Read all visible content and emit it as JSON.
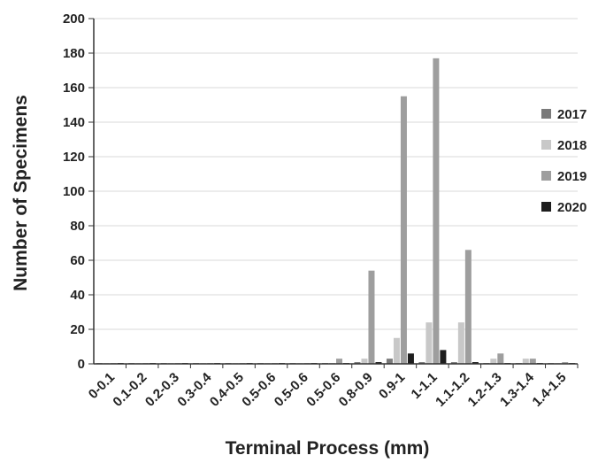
{
  "chart_data": {
    "type": "bar",
    "title": "",
    "xlabel": "Terminal Process (mm)",
    "ylabel": "Number of Specimens",
    "ylim": [
      0,
      200
    ],
    "ystep": 20,
    "grid": true,
    "legend_position": "right",
    "categories": [
      "0-0.1",
      "0.1-0.2",
      "0.2-0.3",
      "0.3-0.4",
      "0.4-0.5",
      "0.5-0.6",
      "0.5-0.6",
      "0.5-0.6",
      "0.8-0.9",
      "0.9-1",
      "1-1.1",
      "1.1-1.2",
      "1.2-1.3",
      "1.3-1.4",
      "1.4-1.5"
    ],
    "series": [
      {
        "name": "2017",
        "color": "#7a7a7a",
        "values": [
          0,
          0,
          0,
          0,
          0,
          0,
          0,
          0,
          1,
          3,
          1,
          1,
          0,
          0,
          0
        ]
      },
      {
        "name": "2018",
        "color": "#c8c8c8",
        "values": [
          0,
          0,
          0,
          0,
          0,
          0,
          0,
          0,
          3,
          15,
          24,
          24,
          3,
          3,
          0
        ]
      },
      {
        "name": "2019",
        "color": "#9e9e9e",
        "values": [
          0,
          0,
          0,
          0,
          0,
          0,
          0,
          3,
          54,
          155,
          177,
          66,
          6,
          3,
          1
        ]
      },
      {
        "name": "2020",
        "color": "#1e1e1e",
        "values": [
          0,
          0,
          0,
          0,
          0,
          0,
          0,
          0,
          1,
          6,
          8,
          1,
          0,
          0,
          0
        ]
      }
    ]
  }
}
